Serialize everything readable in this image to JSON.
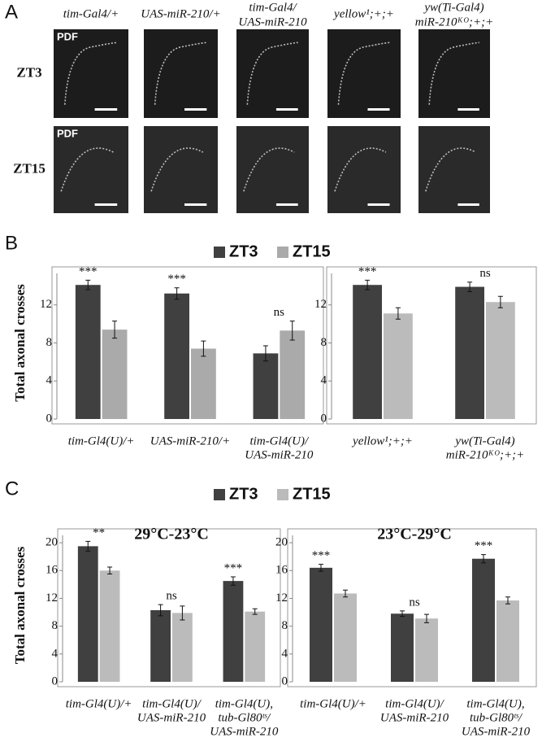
{
  "panel_labels": [
    "A",
    "B",
    "C"
  ],
  "panel_a": {
    "columns": [
      [
        "tim-Gal4/+"
      ],
      [
        "UAS-miR-210/+"
      ],
      [
        "tim-Gal4/",
        "UAS-miR-210"
      ],
      [
        "yellow¹;+;+"
      ],
      [
        "yw(Ti-Gal4)",
        "miR-210ᴷᴼ;+;+"
      ]
    ],
    "rows": [
      "ZT3",
      "ZT15"
    ],
    "stain": "PDF"
  },
  "chart_data": [
    {
      "type": "bar",
      "ylabel": "Total axonal crosses",
      "categories": [
        [
          "tim-Gl4(U)/+"
        ],
        [
          "UAS-miR-210/+"
        ],
        [
          "tim-Gl4(U)/",
          "UAS-miR-210"
        ]
      ],
      "series": [
        {
          "name": "ZT3",
          "color": "#404040",
          "values": [
            14.1,
            13.2,
            6.9
          ],
          "errors": [
            0.5,
            0.6,
            0.8
          ]
        },
        {
          "name": "ZT15",
          "color": "#aaaaaa",
          "values": [
            9.4,
            7.4,
            9.3
          ],
          "errors": [
            0.9,
            0.8,
            1.0
          ]
        }
      ],
      "annotations": [
        "***",
        "***",
        "ns"
      ],
      "ylim": [
        0,
        16
      ],
      "yticks": [
        0,
        4,
        8,
        12
      ]
    },
    {
      "type": "bar",
      "categories": [
        [
          "yellow¹;+;+"
        ],
        [
          "yw(Ti-Gal4)",
          "miR-210ᴷᴼ;+;+"
        ]
      ],
      "series": [
        {
          "color": "#404040",
          "values": [
            14.1,
            13.9
          ],
          "errors": [
            0.5,
            0.5
          ]
        },
        {
          "color": "#bbbbbb",
          "values": [
            11.1,
            12.3
          ],
          "errors": [
            0.6,
            0.6
          ]
        }
      ],
      "annotations": [
        "***",
        "ns"
      ],
      "ylim": [
        0,
        16
      ],
      "yticks": [
        0,
        4,
        8,
        12
      ]
    },
    {
      "type": "bar",
      "title": "29°C-23°C",
      "ylabel": "Total axonal crosses",
      "categories": [
        [
          "tim-Gl4(U)/+"
        ],
        [
          "tim-Gl4(U)/",
          "UAS-miR-210"
        ],
        [
          "tim-Gl4(U),",
          "tub-Gl80ᵗˢ/",
          "UAS-miR-210"
        ]
      ],
      "series": [
        {
          "name": "ZT3",
          "color": "#404040",
          "values": [
            19.5,
            10.3,
            14.5
          ],
          "errors": [
            0.7,
            0.8,
            0.6
          ]
        },
        {
          "name": "ZT15",
          "color": "#bbbbbb",
          "values": [
            16.0,
            9.9,
            10.1
          ],
          "errors": [
            0.5,
            1.0,
            0.4
          ]
        }
      ],
      "annotations": [
        "**",
        "ns",
        "***"
      ],
      "ylim": [
        0,
        22
      ],
      "yticks": [
        0,
        4,
        8,
        12,
        16,
        20
      ]
    },
    {
      "type": "bar",
      "title": "23°C-29°C",
      "categories": [
        [
          "tim-Gl4(U)/+"
        ],
        [
          "tim-Gl4(U)/",
          "UAS-miR-210"
        ],
        [
          "tim-Gl4(U),",
          "tub-Gl80ᵗˢ/",
          "UAS-miR-210"
        ]
      ],
      "series": [
        {
          "color": "#404040",
          "values": [
            16.4,
            9.8,
            17.7
          ],
          "errors": [
            0.5,
            0.4,
            0.6
          ]
        },
        {
          "color": "#bbbbbb",
          "values": [
            12.7,
            9.1,
            11.7
          ],
          "errors": [
            0.5,
            0.6,
            0.5
          ]
        }
      ],
      "annotations": [
        "***",
        "ns",
        "***"
      ],
      "ylim": [
        0,
        22
      ],
      "yticks": [
        0,
        4,
        8,
        12,
        16,
        20
      ]
    }
  ]
}
